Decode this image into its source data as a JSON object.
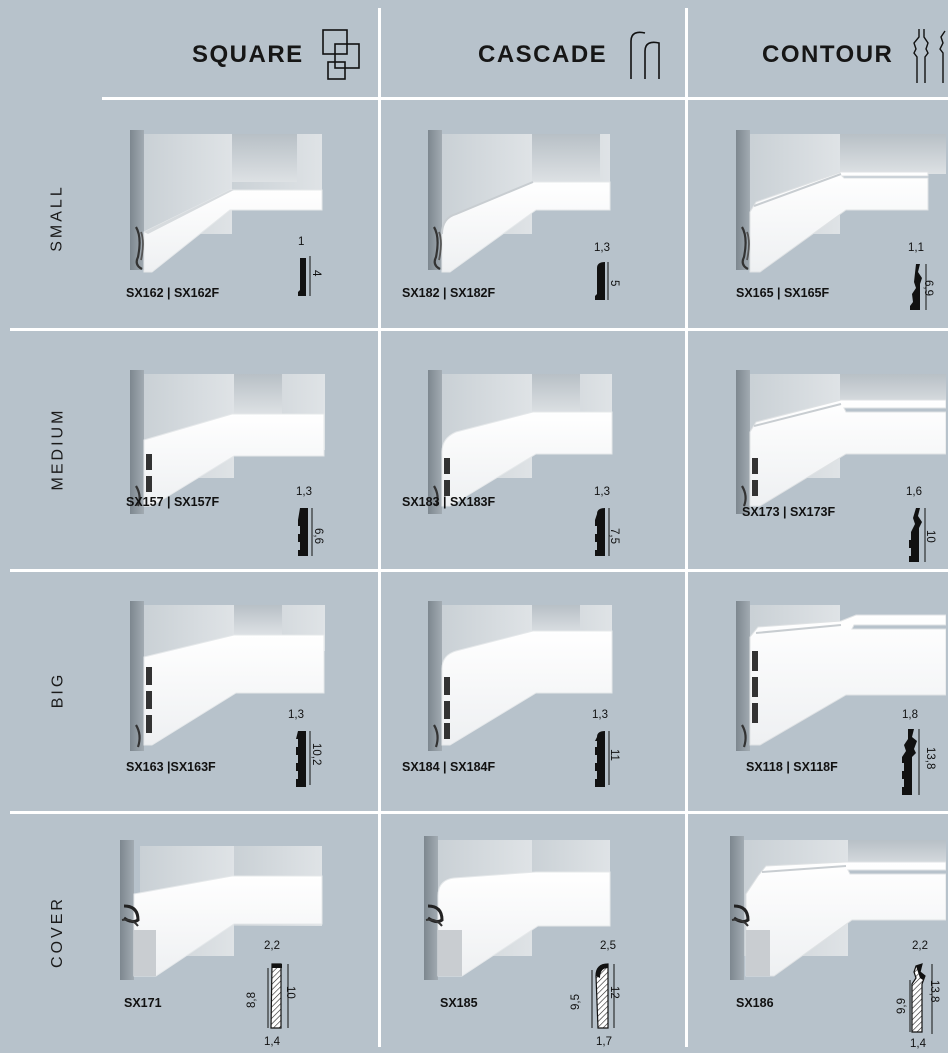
{
  "columns": [
    {
      "title": "SQUARE",
      "icon": "square-profile-icon"
    },
    {
      "title": "CASCADE",
      "icon": "cascade-profile-icon"
    },
    {
      "title": "CONTOUR",
      "icon": "contour-profile-icon"
    }
  ],
  "rows": [
    "SMALL",
    "MEDIUM",
    "BIG",
    "COVER"
  ],
  "cells": {
    "small_square": {
      "code": "SX162 | SX162F",
      "w": "1",
      "h": "4"
    },
    "small_cascade": {
      "code": "SX182 | SX182F",
      "w": "1,3",
      "h": "5"
    },
    "small_contour": {
      "code": "SX165 | SX165F",
      "w": "1,1",
      "h": "6,9"
    },
    "medium_square": {
      "code": "SX157 | SX157F",
      "w": "1,3",
      "h": "6,6"
    },
    "medium_cascade": {
      "code": "SX183 | SX183F",
      "w": "1,3",
      "h": "7,5"
    },
    "medium_contour": {
      "code": "SX173 | SX173F",
      "w": "1,6",
      "h": "10"
    },
    "big_square": {
      "code": "SX163 |SX163F",
      "w": "1,3",
      "h": "10,2"
    },
    "big_cascade": {
      "code": "SX184 | SX184F",
      "w": "1,3",
      "h": "11"
    },
    "big_contour": {
      "code": "SX118 | SX118F",
      "w": "1,8",
      "h": "13,8"
    },
    "cover_square": {
      "code": "SX171",
      "w_top": "2,2",
      "h_outer": "10",
      "h_inner": "8,8",
      "w_bottom": "1,4"
    },
    "cover_cascade": {
      "code": "SX185",
      "w_top": "2,5",
      "h_outer": "12",
      "h_inner": "9,5",
      "w_bottom": "1,7"
    },
    "cover_contour": {
      "code": "SX186",
      "w_top": "2,2",
      "h_outer": "13,8",
      "h_inner": "9,9",
      "w_bottom": "1,4"
    }
  },
  "colors": {
    "background": "#b7c2cb",
    "divider": "#ffffff",
    "wall": "#d4d9dd",
    "floor_wall": "#8f9aa2",
    "skirting": "#f7f8f9",
    "text": "#111111"
  }
}
